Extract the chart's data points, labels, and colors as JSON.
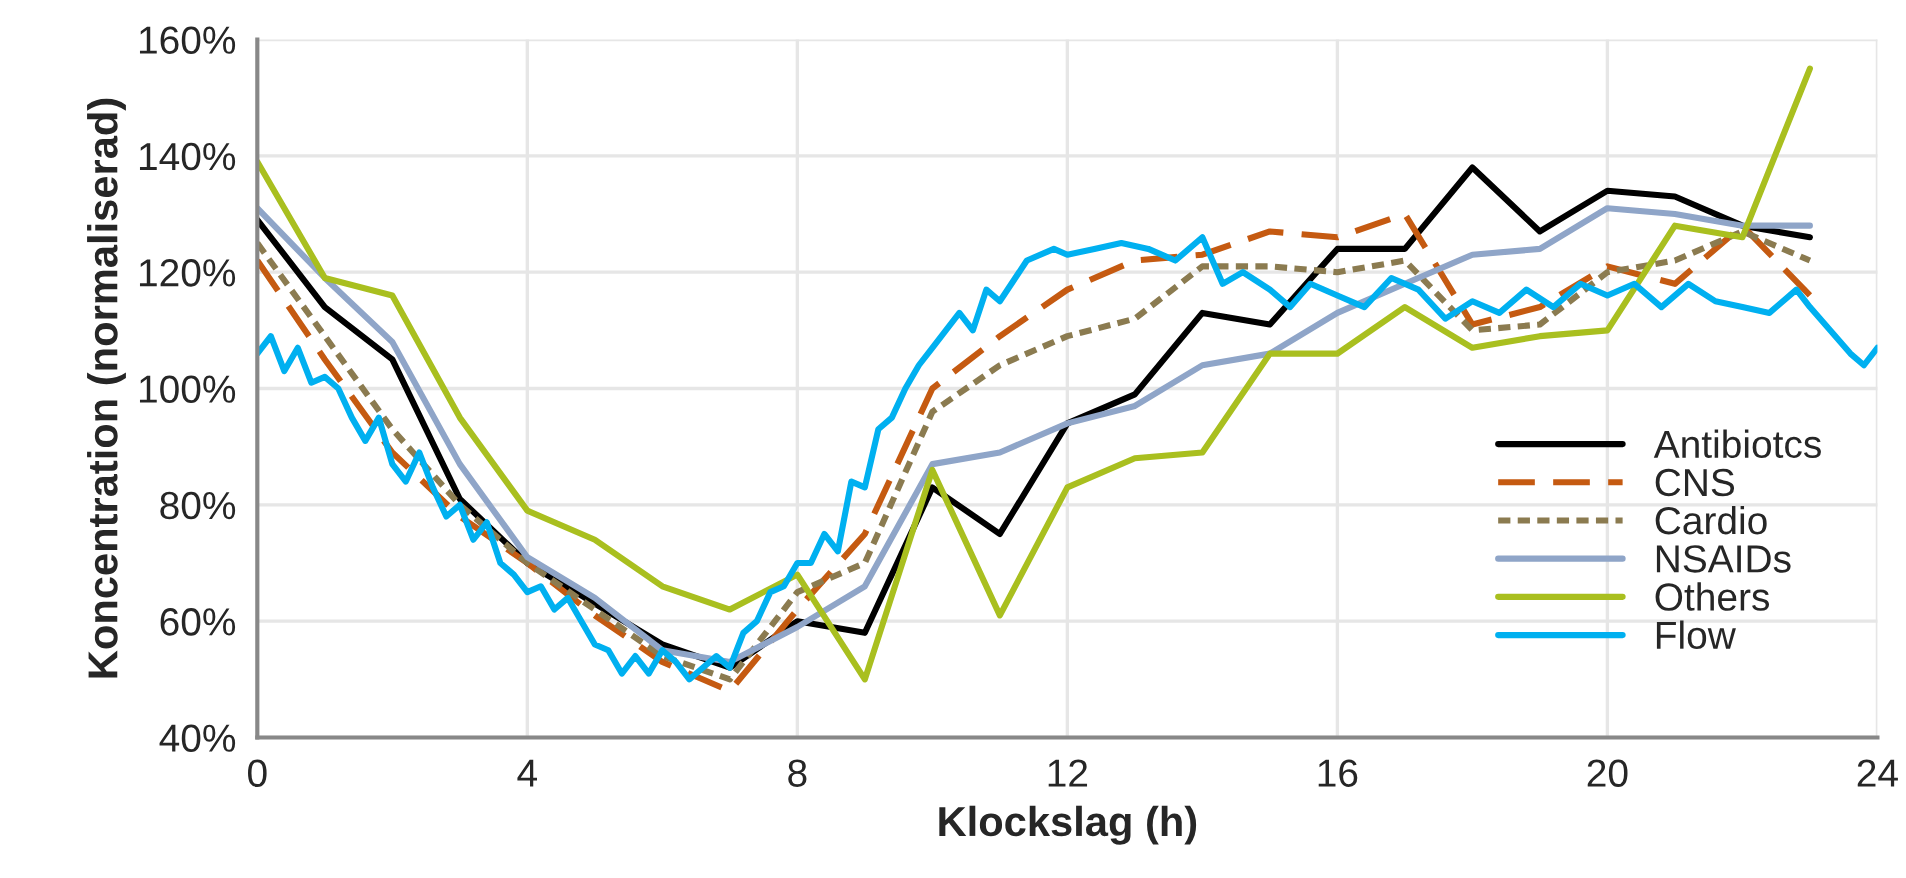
{
  "chart_data": {
    "type": "line",
    "xlabel": "Klockslag (h)",
    "ylabel": "Koncentration (normaliserad)",
    "xlim": [
      0,
      24
    ],
    "xticks": [
      0,
      4,
      8,
      12,
      16,
      20,
      24
    ],
    "ylim": [
      40,
      160
    ],
    "yticks": [
      {
        "value": 40,
        "label": "40%"
      },
      {
        "value": 60,
        "label": "60%"
      },
      {
        "value": 80,
        "label": "80%"
      },
      {
        "value": 100,
        "label": "100%"
      },
      {
        "value": 120,
        "label": "120%"
      },
      {
        "value": 140,
        "label": "140%"
      },
      {
        "value": 160,
        "label": "160%"
      }
    ],
    "grid": true,
    "legend": "bottom right",
    "marker": "none",
    "x": [
      0,
      1,
      2,
      3,
      4,
      5,
      6,
      7,
      8,
      9,
      10,
      11,
      12,
      13,
      14,
      15,
      16,
      17,
      18,
      19,
      20,
      21,
      22,
      23
    ],
    "series": [
      {
        "name": "Antibiotcs",
        "color": "#000000",
        "line_style": "solid",
        "values": [
          129,
          114,
          105,
          81,
          70,
          63,
          56,
          52,
          60,
          58,
          83,
          75,
          94,
          99,
          113,
          111,
          124,
          124,
          138,
          127,
          134,
          133,
          128,
          126
        ]
      },
      {
        "name": "CNS",
        "color": "#c55a11",
        "line_style": "dashed",
        "values": [
          122,
          105,
          89,
          78,
          70,
          61,
          53,
          48,
          62,
          75,
          100,
          109,
          117,
          122,
          123,
          127,
          126,
          130,
          111,
          114,
          121,
          118,
          128,
          116
        ]
      },
      {
        "name": "Cardio",
        "color": "#8b7b50",
        "line_style": "dotted",
        "values": [
          125,
          109,
          93,
          80,
          70,
          62,
          54,
          50,
          65,
          70,
          96,
          104,
          109,
          112,
          121,
          121,
          120,
          122,
          110,
          111,
          120,
          122,
          127,
          122
        ]
      },
      {
        "name": "NSAIDs",
        "color": "#8fa5c8",
        "line_style": "solid",
        "values": [
          131,
          119,
          108,
          87,
          71,
          64,
          55,
          53,
          59,
          66,
          87,
          89,
          94,
          97,
          104,
          106,
          113,
          118,
          123,
          124,
          131,
          130,
          128,
          128
        ]
      },
      {
        "name": "Others",
        "color": "#a9bf1f",
        "line_style": "solid",
        "values": [
          139,
          119,
          116,
          95,
          79,
          74,
          66,
          62,
          68,
          50,
          86,
          61,
          83,
          88,
          89,
          106,
          106,
          114,
          107,
          109,
          110,
          128,
          126,
          155
        ]
      },
      {
        "name": "Flow",
        "color": "#00b0f0",
        "line_style": "solid",
        "x": [
          0,
          0.2,
          0.4,
          0.6,
          0.8,
          1,
          1.2,
          1.4,
          1.6,
          1.8,
          2,
          2.2,
          2.4,
          2.6,
          2.8,
          3,
          3.2,
          3.4,
          3.6,
          3.8,
          4,
          4.2,
          4.4,
          4.6,
          4.8,
          5,
          5.2,
          5.4,
          5.6,
          5.8,
          6,
          6.2,
          6.4,
          6.6,
          6.8,
          7,
          7.2,
          7.4,
          7.6,
          7.8,
          8,
          8.2,
          8.4,
          8.6,
          8.8,
          9,
          9.2,
          9.4,
          9.6,
          9.8,
          10,
          10.2,
          10.4,
          10.6,
          10.8,
          11,
          11.4,
          11.8,
          12,
          12.4,
          12.8,
          13.2,
          13.6,
          14,
          14.3,
          14.6,
          15,
          15.3,
          15.6,
          16,
          16.4,
          16.8,
          17.2,
          17.6,
          18,
          18.4,
          18.8,
          19.2,
          19.6,
          20,
          20.4,
          20.8,
          21.2,
          21.6,
          22,
          22.4,
          22.8,
          23,
          23.3,
          23.6,
          23.8,
          24
        ],
        "values": [
          106,
          109,
          103,
          107,
          101,
          102,
          100,
          95,
          91,
          95,
          87,
          84,
          89,
          83,
          78,
          80,
          74,
          77,
          70,
          68,
          65,
          66,
          62,
          64,
          60,
          56,
          55,
          51,
          54,
          51,
          55,
          53,
          50,
          52,
          54,
          52,
          58,
          60,
          65,
          66,
          70,
          70,
          75,
          72,
          84,
          83,
          93,
          95,
          100,
          104,
          107,
          110,
          113,
          110,
          117,
          115,
          122,
          124,
          123,
          124,
          125,
          124,
          122,
          126,
          118,
          120,
          117,
          114,
          118,
          116,
          114,
          119,
          117,
          112,
          115,
          113,
          117,
          114,
          118,
          116,
          118,
          114,
          118,
          115,
          114,
          113,
          117,
          114,
          110,
          106,
          104,
          107
        ]
      }
    ]
  }
}
